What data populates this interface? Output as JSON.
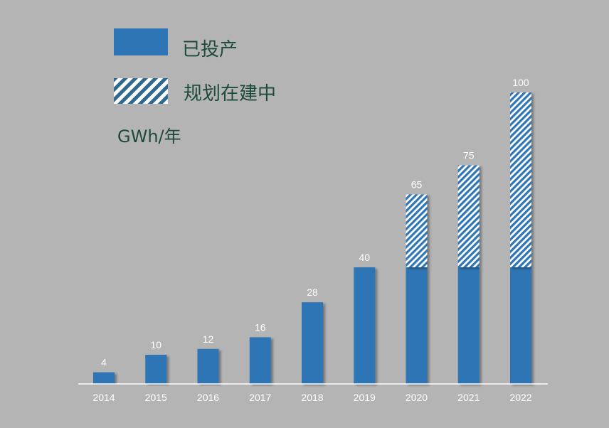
{
  "legend": {
    "operating_label": "已投产",
    "planned_label": "规划在建中"
  },
  "unit": "GWh/年",
  "colors": {
    "background": "#b4b4b4",
    "operating": "#2e75b6",
    "planned_stripe": "#2e75b6",
    "planned_bg": "#ffffff",
    "label": "#ffffff",
    "legend_text": "#1e4a3c"
  },
  "chart_data": {
    "type": "bar",
    "stacked": true,
    "categories": [
      "2014",
      "2015",
      "2016",
      "2017",
      "2018",
      "2019",
      "2020",
      "2021",
      "2022"
    ],
    "series": [
      {
        "name": "已投产",
        "values": [
          4,
          10,
          12,
          16,
          28,
          40,
          40,
          40,
          40
        ]
      },
      {
        "name": "规划在建中",
        "values": [
          0,
          0,
          0,
          0,
          0,
          0,
          25,
          35,
          60
        ]
      }
    ],
    "totals": [
      4,
      10,
      12,
      16,
      28,
      40,
      65,
      75,
      100
    ],
    "total_labels": [
      "4",
      "10",
      "12",
      "16",
      "28",
      "40",
      "65",
      "75",
      "100"
    ],
    "ylim": [
      0,
      100
    ],
    "grid": false,
    "legend_position": "top-left"
  }
}
